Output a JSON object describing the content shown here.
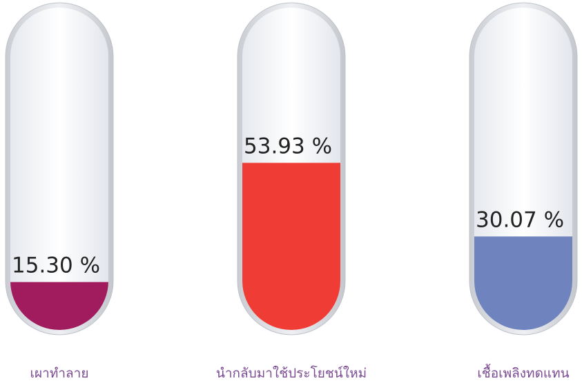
{
  "chart_data": {
    "type": "bar",
    "categories": [
      "เผาทำลาย",
      "นำกลับมาใช้ประโยชน์ใหม่",
      "เชื้อเพลิงทดแทน"
    ],
    "values": [
      15.3,
      53.93,
      30.07
    ],
    "value_labels": [
      "15.30 %",
      "53.93 %",
      "30.07 %"
    ],
    "colors": [
      "#a01c5e",
      "#ef3d36",
      "#6f83be"
    ],
    "ylim": [
      0,
      100
    ]
  }
}
